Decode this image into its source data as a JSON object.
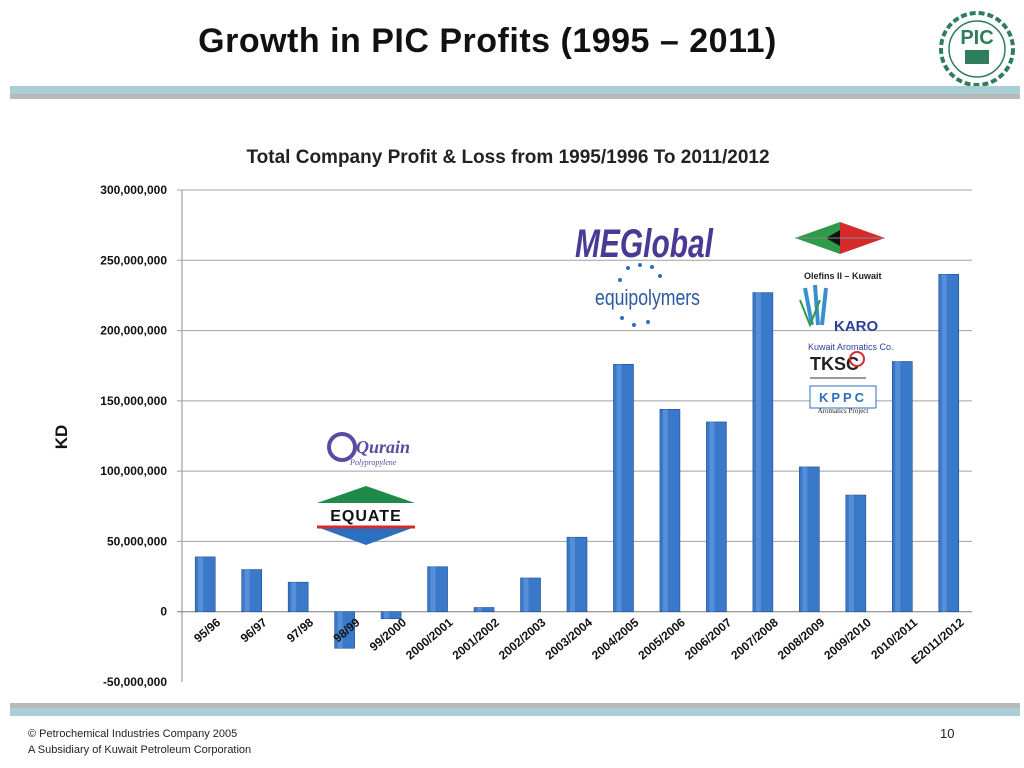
{
  "slide": {
    "title": "Growth in PIC Profits (1995 – 2011)",
    "footer_copyright": "Petrochemical Industries Company 2005",
    "footer_subsidiary": "A Subsidiary of Kuwait Petroleum Corporation",
    "page_number": "10",
    "logo_text": "PIC"
  },
  "logos": {
    "meglobal": "MEGlobal",
    "equipolymers": "equipolymers",
    "olefins": "Olefins II – Kuwait",
    "karo": "KARO",
    "karo_sub": "Kuwait Aromatics Co.",
    "tkoc": "TKSC",
    "kppc": "KPPC",
    "kppc_sub": "Aromatics Project",
    "qurain": "Qurain",
    "qurain_sub": "Polypropylene",
    "equate": "EQUATE"
  },
  "chart_data": {
    "type": "bar",
    "title": "Total Company Profit & Loss from 1995/1996 To 2011/2012",
    "ylabel": "KD",
    "xlabel": "",
    "ylim": [
      -50000000,
      300000000
    ],
    "yticks": [
      {
        "value": 300000000,
        "label": "300,000,000"
      },
      {
        "value": 250000000,
        "label": "250,000,000"
      },
      {
        "value": 200000000,
        "label": "200,000,000"
      },
      {
        "value": 150000000,
        "label": "150,000,000"
      },
      {
        "value": 100000000,
        "label": "100,000,000"
      },
      {
        "value": 50000000,
        "label": "50,000,000"
      },
      {
        "value": 0,
        "label": "0"
      },
      {
        "value": -50000000,
        "label": "-50,000,000"
      }
    ],
    "categories": [
      "95/96",
      "96/97",
      "97/98",
      "98/99",
      "99/2000",
      "2000/2001",
      "2001/2002",
      "2002/2003",
      "2003/2004",
      "2004/2005",
      "2005/2006",
      "2006/2007",
      "2007/2008",
      "2008/2009",
      "2009/2010",
      "2010/2011",
      "E2011/2012"
    ],
    "values": [
      39000000,
      30000000,
      21000000,
      -26000000,
      -5000000,
      32000000,
      3000000,
      24000000,
      53000000,
      176000000,
      144000000,
      135000000,
      227000000,
      103000000,
      83000000,
      178000000,
      240000000
    ],
    "grid": true,
    "bar_color": "#3a78c9"
  }
}
